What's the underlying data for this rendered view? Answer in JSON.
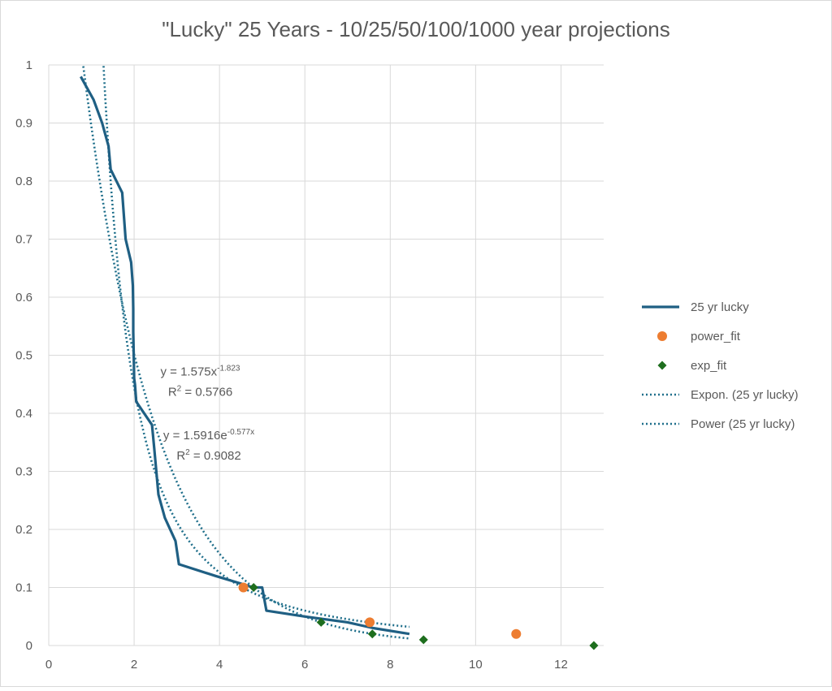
{
  "chart_data": {
    "type": "scatter",
    "title": "\"Lucky\" 25 Years - 10/25/50/100/1000 year projections",
    "xlim": [
      0,
      13
    ],
    "ylim": [
      0,
      1
    ],
    "x_ticks": [
      "0",
      "2",
      "4",
      "6",
      "8",
      "10",
      "12"
    ],
    "y_ticks": [
      "0",
      "0.1",
      "0.2",
      "0.3",
      "0.4",
      "0.5",
      "0.6",
      "0.7",
      "0.8",
      "0.9",
      "1"
    ],
    "grid": true,
    "legend_position": "right",
    "series": [
      {
        "name": "25 yr lucky",
        "kind": "line",
        "color": "#1f5f83",
        "points": [
          [
            0.75,
            0.98
          ],
          [
            1.05,
            0.94
          ],
          [
            1.25,
            0.9
          ],
          [
            1.4,
            0.86
          ],
          [
            1.45,
            0.82
          ],
          [
            1.72,
            0.78
          ],
          [
            1.8,
            0.7
          ],
          [
            1.93,
            0.66
          ],
          [
            1.97,
            0.62
          ],
          [
            1.98,
            0.58
          ],
          [
            1.98,
            0.54
          ],
          [
            1.99,
            0.5
          ],
          [
            2.0,
            0.46
          ],
          [
            2.02,
            0.45
          ],
          [
            2.05,
            0.42
          ],
          [
            2.42,
            0.38
          ],
          [
            2.47,
            0.34
          ],
          [
            2.52,
            0.3
          ],
          [
            2.57,
            0.26
          ],
          [
            2.72,
            0.22
          ],
          [
            2.97,
            0.18
          ],
          [
            3.05,
            0.14
          ],
          [
            3.9,
            0.12
          ],
          [
            4.8,
            0.1
          ],
          [
            5.0,
            0.1
          ],
          [
            5.1,
            0.06
          ],
          [
            6.0,
            0.05
          ],
          [
            7.0,
            0.04
          ],
          [
            7.6,
            0.03
          ],
          [
            8.45,
            0.02
          ]
        ]
      },
      {
        "name": "power_fit",
        "kind": "marker",
        "marker": "circle",
        "color": "#ed7d31",
        "points": [
          [
            4.56,
            0.1
          ],
          [
            7.52,
            0.04
          ],
          [
            10.95,
            0.02
          ]
        ]
      },
      {
        "name": "exp_fit",
        "kind": "marker",
        "marker": "diamond",
        "color": "#1e6e1e",
        "points": [
          [
            4.8,
            0.1
          ],
          [
            6.38,
            0.04
          ],
          [
            7.58,
            0.02
          ],
          [
            8.78,
            0.01
          ],
          [
            12.77,
            0.0
          ]
        ]
      },
      {
        "name": "Expon. (25 yr lucky)",
        "kind": "trend",
        "model": "exponential",
        "a": 1.5916,
        "b": -0.577,
        "domain": [
          0.75,
          8.45
        ],
        "color": "#1f6f8b"
      },
      {
        "name": "Power (25 yr lucky)",
        "kind": "trend",
        "model": "power",
        "a": 1.575,
        "b": -1.823,
        "domain": [
          0.75,
          8.45
        ],
        "color": "#1f6f8b"
      }
    ],
    "annotations": [
      {
        "id": "power",
        "pre": "y = 1.575x",
        "sup": "-1.823",
        "r2": "R",
        "r2_sup": "2",
        "r2_rest": " = 0.5766",
        "at": [
          3.55,
          0.465
        ]
      },
      {
        "id": "expon",
        "pre": "y = 1.5916e",
        "sup": "-0.577x",
        "r2": "R",
        "r2_sup": "2",
        "r2_rest": " = 0.9082",
        "at": [
          3.75,
          0.355
        ]
      }
    ]
  }
}
